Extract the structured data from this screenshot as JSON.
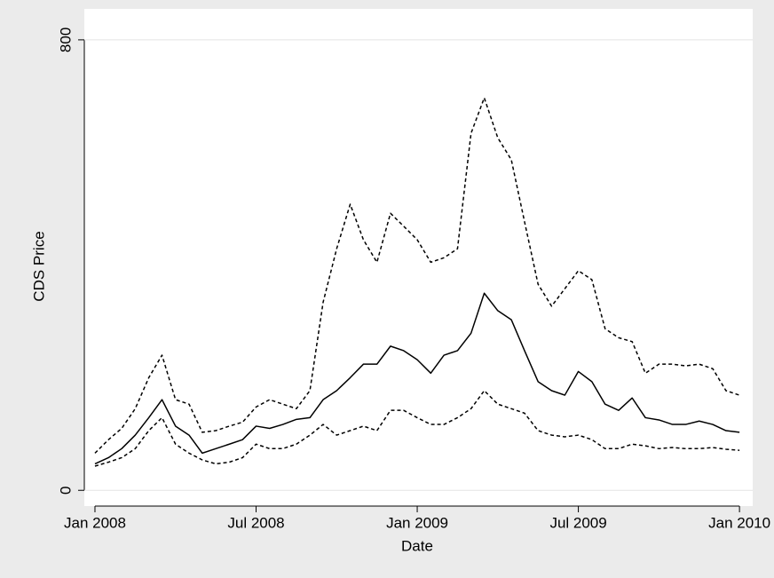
{
  "chart_data": {
    "type": "line",
    "xlabel": "Date",
    "ylabel": "CDS Price",
    "x": [
      2008,
      2008.042,
      2008.083,
      2008.125,
      2008.167,
      2008.208,
      2008.25,
      2008.292,
      2008.333,
      2008.375,
      2008.417,
      2008.458,
      2008.5,
      2008.542,
      2008.583,
      2008.625,
      2008.667,
      2008.708,
      2008.75,
      2008.792,
      2008.833,
      2008.875,
      2008.917,
      2008.958,
      2009,
      2009.042,
      2009.083,
      2009.125,
      2009.167,
      2009.208,
      2009.25,
      2009.292,
      2009.333,
      2009.375,
      2009.417,
      2009.458,
      2009.5,
      2009.542,
      2009.583,
      2009.625,
      2009.667,
      2009.708,
      2009.75,
      2009.792,
      2009.833,
      2009.875,
      2009.917,
      2009.958,
      2010
    ],
    "series": [
      {
        "color": "#000000",
        "dash": true,
        "values": [
          66,
          90,
          110,
          145,
          200,
          240,
          161,
          153,
          103,
          106,
          114,
          121,
          148,
          161,
          153,
          145,
          177,
          334,
          429,
          508,
          445,
          405,
          492,
          469,
          445,
          405,
          413,
          429,
          634,
          697,
          626,
          587,
          477,
          366,
          327,
          358,
          390,
          374,
          287,
          271,
          264,
          208,
          224,
          224,
          221,
          224,
          216,
          177,
          169
        ]
      },
      {
        "color": "#000000",
        "dash": false,
        "values": [
          47,
          58,
          74,
          98,
          129,
          161,
          114,
          98,
          66,
          74,
          82,
          90,
          114,
          110,
          117,
          126,
          129,
          161,
          177,
          200,
          224,
          224,
          256,
          248,
          232,
          208,
          240,
          248,
          279,
          350,
          319,
          303,
          248,
          193,
          177,
          169,
          211,
          193,
          153,
          142,
          164,
          129,
          125,
          117,
          117,
          123,
          117,
          106,
          103
        ]
      },
      {
        "color": "#000000",
        "dash": true,
        "values": [
          43,
          50,
          58,
          74,
          106,
          129,
          82,
          66,
          54,
          47,
          50,
          58,
          82,
          74,
          74,
          82,
          98,
          117,
          98,
          106,
          114,
          106,
          142,
          142,
          129,
          117,
          117,
          129,
          145,
          177,
          153,
          145,
          137,
          106,
          98,
          95,
          98,
          90,
          74,
          74,
          82,
          79,
          74,
          76,
          74,
          74,
          76,
          73,
          71
        ]
      }
    ],
    "xlim": [
      2007.967,
      2010.041
    ],
    "xticks": [
      {
        "value": 2008,
        "label": "Jan 2008"
      },
      {
        "value": 2008.5,
        "label": "Jul 2008"
      },
      {
        "value": 2009,
        "label": "Jan 2009"
      },
      {
        "value": 2009.5,
        "label": "Jul 2009"
      },
      {
        "value": 2010,
        "label": "Jan 2010"
      }
    ],
    "ylim": [
      -28,
      855
    ],
    "yticks": [
      0,
      800
    ],
    "grid": true
  }
}
